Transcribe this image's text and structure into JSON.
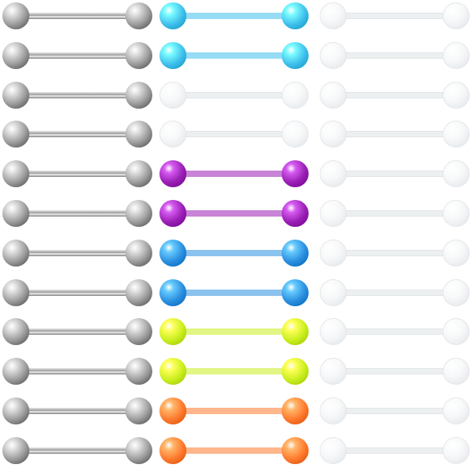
{
  "image": {
    "subject": "tongue-barbells",
    "rows": 12,
    "columns": [
      {
        "material": "steel",
        "colors": [
          "#9c9c9c",
          "#9c9c9c",
          "#9c9c9c",
          "#9c9c9c",
          "#9c9c9c",
          "#9c9c9c",
          "#9c9c9c",
          "#9c9c9c",
          "#9c9c9c",
          "#9c9c9c",
          "#9c9c9c",
          "#9c9c9c"
        ]
      },
      {
        "material": "acrylic",
        "colors": [
          "#3fc0ec",
          "#3fc0ec",
          "#eef2ee",
          "#eef2ee",
          "#9a1fb5",
          "#9a1fb5",
          "#2b8fe0",
          "#2b8fe0",
          "#c9ef1f",
          "#c9ef1f",
          "#ff7a2e",
          "#ff7a2e"
        ]
      },
      {
        "material": "clear",
        "colors": [
          "#f3f5f7",
          "#f3f5f7",
          "#f3f5f7",
          "#f3f5f7",
          "#f3f5f7",
          "#f3f5f7",
          "#f3f5f7",
          "#f3f5f7",
          "#f3f5f7",
          "#f3f5f7",
          "#f3f5f7",
          "#f3f5f7"
        ]
      }
    ]
  }
}
